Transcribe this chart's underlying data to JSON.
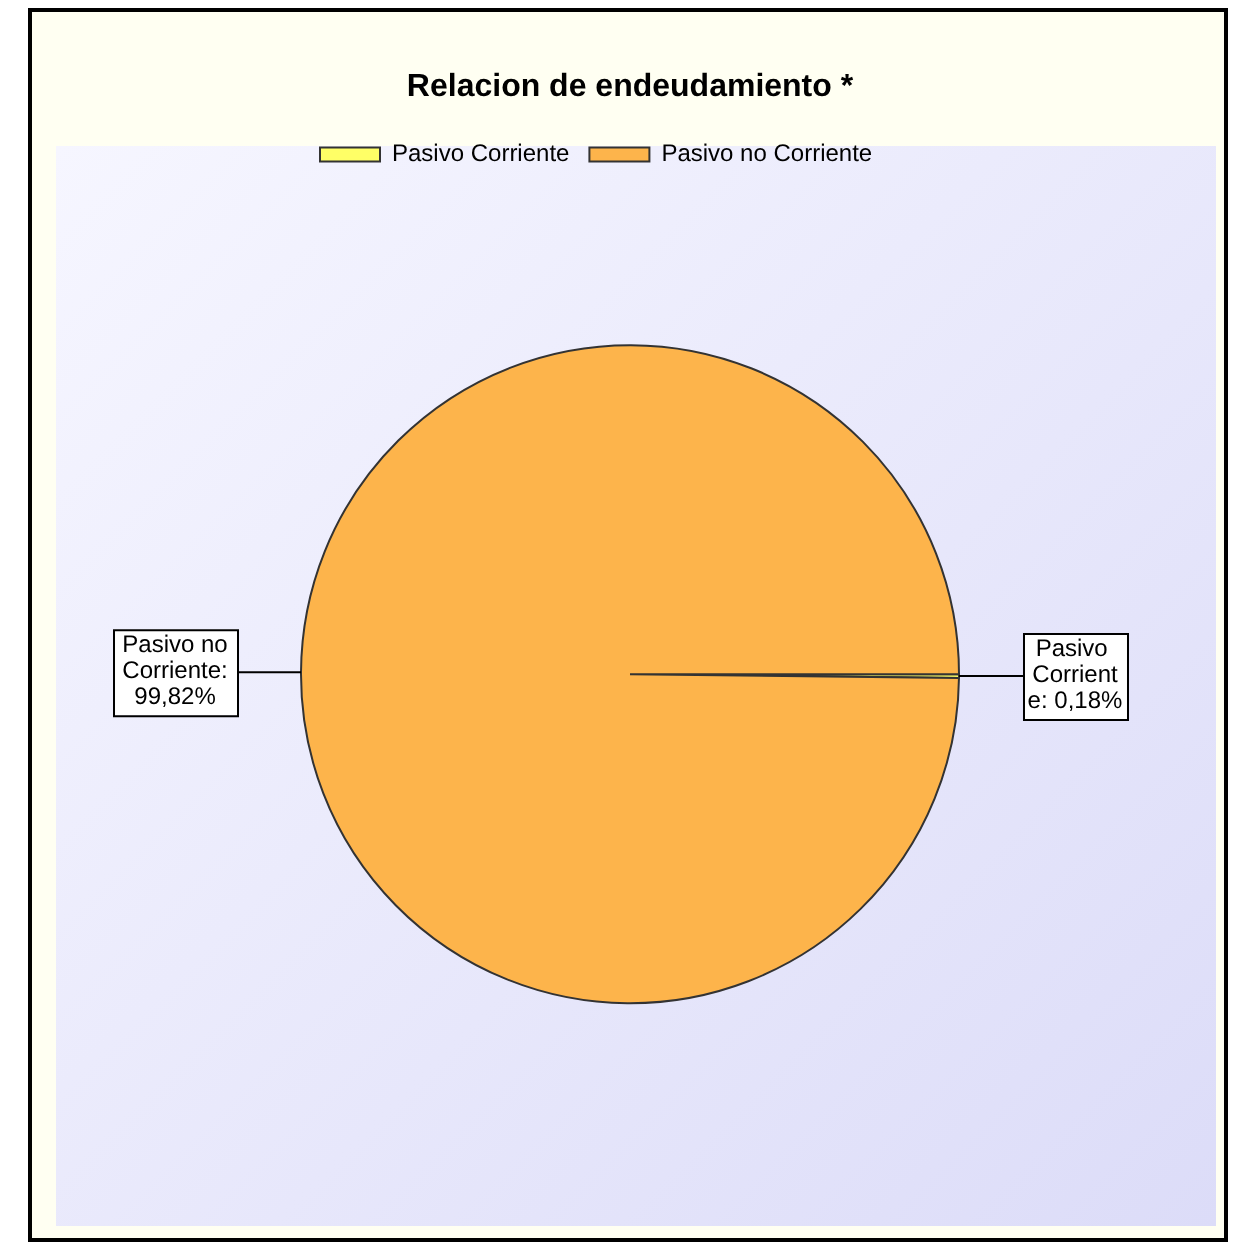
{
  "chart_data": {
    "type": "pie",
    "title": "Relacion de endeudamiento *",
    "categories": [
      "Pasivo Corriente",
      "Pasivo no Corriente"
    ],
    "values": [
      0.18,
      99.82
    ],
    "colors": [
      "#ffff66",
      "#fdb44b"
    ],
    "value_labels": [
      "Pasivo Corriente: 0,18%",
      "Pasivo no Corriente: 99,82%"
    ],
    "legend": "top left"
  }
}
